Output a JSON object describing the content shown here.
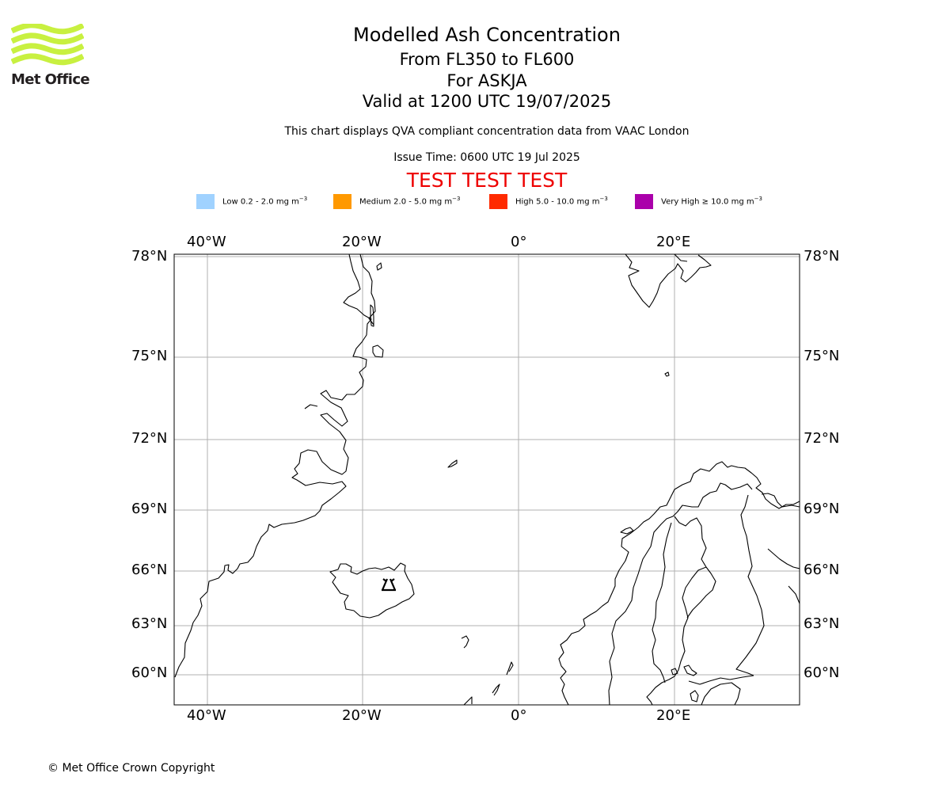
{
  "logo": {
    "brand_text": "Met Office",
    "stripe_color": "#c8f040"
  },
  "header": {
    "title": "Modelled Ash Concentration",
    "level_range": "From FL350 to FL600",
    "volcano": "For ASKJA",
    "valid_time": "Valid at 1200 UTC 19/07/2025",
    "description": "This chart displays QVA compliant concentration data from VAAC London",
    "issue_time": "Issue Time: 0600 UTC 19 Jul 2025",
    "test_banner": "TEST TEST TEST",
    "test_color": "#ee0000"
  },
  "legend": {
    "unit_prefix": "mg m",
    "unit_exponent": "−3",
    "items": [
      {
        "label": "Low 0.2 - 2.0",
        "color": "#a0d2ff"
      },
      {
        "label": "Medium 2.0 - 5.0",
        "color": "#ff9900"
      },
      {
        "label": "High 5.0 - 10.0",
        "color": "#ff2a00"
      },
      {
        "label": "Very High  ≥  10.0",
        "color": "#aa00aa"
      }
    ]
  },
  "map": {
    "volcano_name": "ASKJA",
    "volcano_symbol": "volcano-icon",
    "lon_range": [
      -44.3,
      36.2
    ],
    "lat_range": [
      58.5,
      78.1
    ],
    "gridline_color": "#b0b0b0",
    "lon_ticks": [
      "40°W",
      "20°W",
      "0°",
      "20°E"
    ],
    "lat_ticks": [
      "78°N",
      "75°N",
      "72°N",
      "69°N",
      "66°N",
      "63°N",
      "60°N"
    ]
  },
  "footer": {
    "copyright": "© Met Office Crown Copyright"
  }
}
